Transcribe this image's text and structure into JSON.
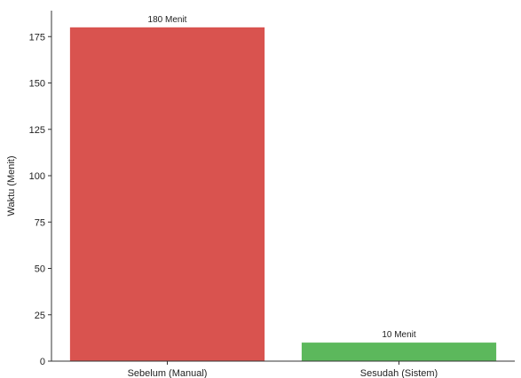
{
  "chart_data": {
    "type": "bar",
    "categories": [
      "Sebelum (Manual)",
      "Sesudah (Sistem)"
    ],
    "values": [
      180,
      10
    ],
    "data_labels": [
      "180 Menit",
      "10 Menit"
    ],
    "colors": [
      "#d9534f",
      "#5cb85c"
    ],
    "ylabel": "Waktu (Menit)",
    "xlabel": "",
    "ylim": [
      0,
      189
    ],
    "yticks": [
      0,
      25,
      50,
      75,
      100,
      125,
      150,
      175
    ],
    "grid": false,
    "legend": "none"
  }
}
